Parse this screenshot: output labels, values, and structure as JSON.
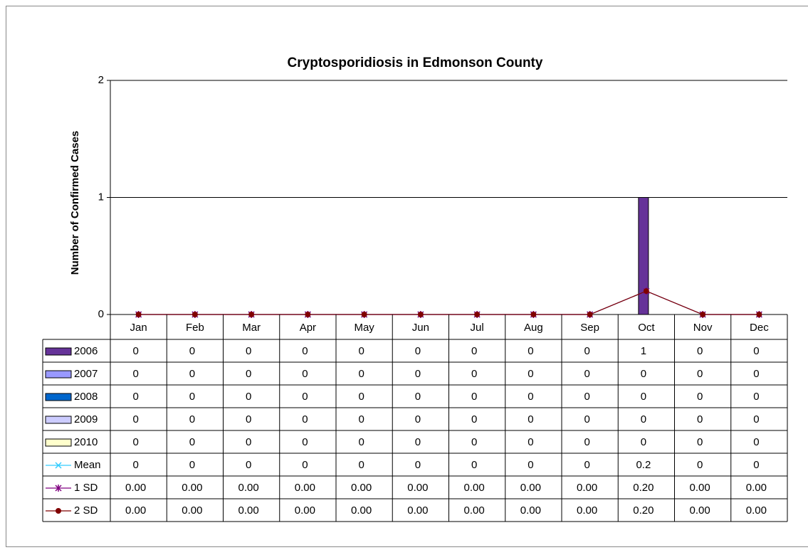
{
  "chart_data": {
    "type": "bar",
    "title": "Cryptosporidiosis in Edmonson County",
    "y_label": "Number of Confirmed Cases",
    "categories": [
      "Jan",
      "Feb",
      "Mar",
      "Apr",
      "May",
      "Jun",
      "Jul",
      "Aug",
      "Sep",
      "Oct",
      "Nov",
      "Dec"
    ],
    "ylim": [
      0,
      2
    ],
    "yticks": [
      0,
      1,
      2
    ],
    "grid": true,
    "series": [
      {
        "name": "2006",
        "type": "bar",
        "color": "#663399",
        "values": [
          0,
          0,
          0,
          0,
          0,
          0,
          0,
          0,
          0,
          1,
          0,
          0
        ]
      },
      {
        "name": "2007",
        "type": "bar",
        "color": "#9999ff",
        "values": [
          0,
          0,
          0,
          0,
          0,
          0,
          0,
          0,
          0,
          0,
          0,
          0
        ]
      },
      {
        "name": "2008",
        "type": "bar",
        "color": "#0066cc",
        "values": [
          0,
          0,
          0,
          0,
          0,
          0,
          0,
          0,
          0,
          0,
          0,
          0
        ]
      },
      {
        "name": "2009",
        "type": "bar",
        "color": "#ccccff",
        "values": [
          0,
          0,
          0,
          0,
          0,
          0,
          0,
          0,
          0,
          0,
          0,
          0
        ]
      },
      {
        "name": "2010",
        "type": "bar",
        "color": "#ffffcc",
        "values": [
          0,
          0,
          0,
          0,
          0,
          0,
          0,
          0,
          0,
          0,
          0,
          0
        ]
      },
      {
        "name": "Mean",
        "type": "line",
        "marker": "x",
        "color": "#33ccff",
        "values": [
          0,
          0,
          0,
          0,
          0,
          0,
          0,
          0,
          0,
          0.2,
          0,
          0
        ]
      },
      {
        "name": "1 SD",
        "type": "line",
        "marker": "star",
        "color": "#800080",
        "values": [
          0,
          0,
          0,
          0,
          0,
          0,
          0,
          0,
          0,
          0.2,
          0,
          0
        ],
        "value_labels": [
          "0.00",
          "0.00",
          "0.00",
          "0.00",
          "0.00",
          "0.00",
          "0.00",
          "0.00",
          "0.00",
          "0.20",
          "0.00",
          "0.00"
        ]
      },
      {
        "name": "2 SD",
        "type": "line",
        "marker": "circle",
        "color": "#800000",
        "values": [
          0,
          0,
          0,
          0,
          0,
          0,
          0,
          0,
          0,
          0.2,
          0,
          0
        ],
        "value_labels": [
          "0.00",
          "0.00",
          "0.00",
          "0.00",
          "0.00",
          "0.00",
          "0.00",
          "0.00",
          "0.00",
          "0.20",
          "0.00",
          "0.00"
        ]
      }
    ]
  }
}
